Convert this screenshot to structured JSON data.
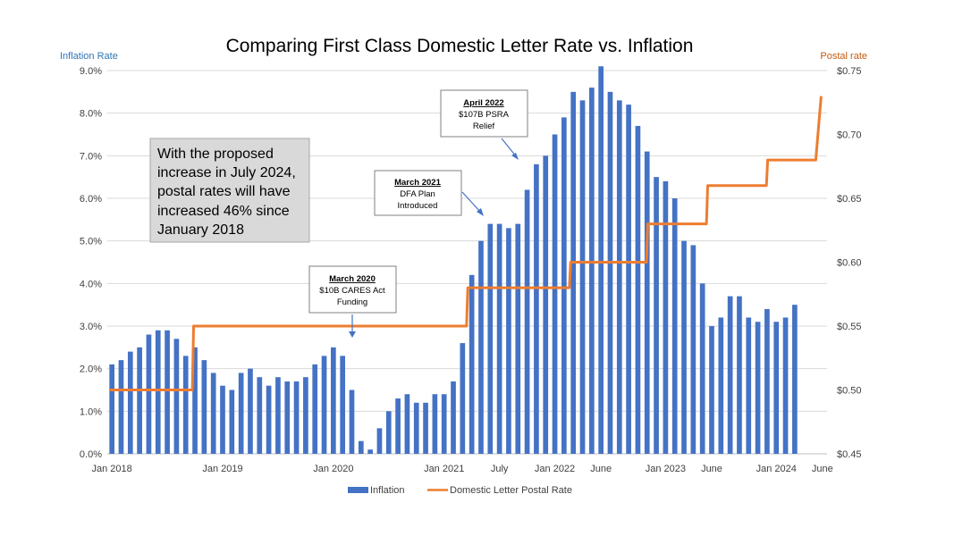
{
  "chart_data": {
    "type": "bar+line",
    "title": "Comparing First Class Domestic Letter Rate vs. Inflation",
    "y_left_label": "Inflation Rate",
    "y_right_label": "Postal rate",
    "y_left_lim": [
      0,
      9
    ],
    "y_right_lim": [
      0.45,
      0.75
    ],
    "y_left_ticks": [
      "0.0%",
      "1.0%",
      "2.0%",
      "3.0%",
      "4.0%",
      "5.0%",
      "6.0%",
      "7.0%",
      "8.0%",
      "9.0%"
    ],
    "y_right_ticks": [
      "$0.45",
      "$0.50",
      "$0.55",
      "$0.60",
      "$0.65",
      "$0.70",
      "$0.75"
    ],
    "x_tick_labels": [
      {
        "label": "Jan 2018",
        "month_index": 0
      },
      {
        "label": "Jan 2019",
        "month_index": 12
      },
      {
        "label": "Jan 2020",
        "month_index": 24
      },
      {
        "label": "Jan 2021",
        "month_index": 36
      },
      {
        "label": "July",
        "month_index": 42
      },
      {
        "label": "Jan 2022",
        "month_index": 48
      },
      {
        "label": "June",
        "month_index": 53
      },
      {
        "label": "Jan 2023",
        "month_index": 60
      },
      {
        "label": "June",
        "month_index": 65
      },
      {
        "label": "Jan 2024",
        "month_index": 72
      },
      {
        "label": "June",
        "month_index": 77
      }
    ],
    "months_total": 78,
    "series": [
      {
        "name": "Inflation",
        "kind": "bar",
        "color": "#4472C4",
        "values": [
          2.1,
          2.2,
          2.4,
          2.5,
          2.8,
          2.9,
          2.9,
          2.7,
          2.3,
          2.5,
          2.2,
          1.9,
          1.6,
          1.5,
          1.9,
          2.0,
          1.8,
          1.6,
          1.8,
          1.7,
          1.7,
          1.8,
          2.1,
          2.3,
          2.5,
          2.3,
          1.5,
          0.3,
          0.1,
          0.6,
          1.0,
          1.3,
          1.4,
          1.2,
          1.2,
          1.4,
          1.4,
          1.7,
          2.6,
          4.2,
          5.0,
          5.4,
          5.4,
          5.3,
          5.4,
          6.2,
          6.8,
          7.0,
          7.5,
          7.9,
          8.5,
          8.3,
          8.6,
          9.1,
          8.5,
          8.3,
          8.2,
          7.7,
          7.1,
          6.5,
          6.4,
          6.0,
          5.0,
          4.9,
          4.0,
          3.0,
          3.2,
          3.7,
          3.7,
          3.2,
          3.1,
          3.4,
          3.1,
          3.2,
          3.5
        ]
      },
      {
        "name": "Domestic Letter Postal Rate",
        "kind": "step-line",
        "color": "#ED7D31",
        "steps": [
          {
            "from": 0,
            "value": 0.5
          },
          {
            "from": 10,
            "value": 0.55
          },
          {
            "from": 42,
            "value": 0.58
          },
          {
            "from": 54,
            "value": 0.6
          },
          {
            "from": 63,
            "value": 0.63
          },
          {
            "from": 70,
            "value": 0.66
          },
          {
            "from": 77,
            "value": 0.68
          },
          {
            "from": 83,
            "value": 0.73
          }
        ]
      }
    ],
    "legend_position": "bottom",
    "grid": "horizontal",
    "annotations": [
      {
        "id": "apr2022",
        "title": "April 2022",
        "lines": [
          "$107B PSRA",
          "Relief"
        ]
      },
      {
        "id": "mar2021",
        "title": "March 2021",
        "lines": [
          "DFA Plan",
          "Introduced"
        ]
      },
      {
        "id": "mar2020",
        "title": "March 2020",
        "lines": [
          "$10B CARES Act",
          "Funding"
        ]
      }
    ],
    "note_lines": [
      "With the proposed",
      "increase in July 2024,",
      "postal rates will have",
      "increased 46% since",
      "January 2018"
    ]
  }
}
